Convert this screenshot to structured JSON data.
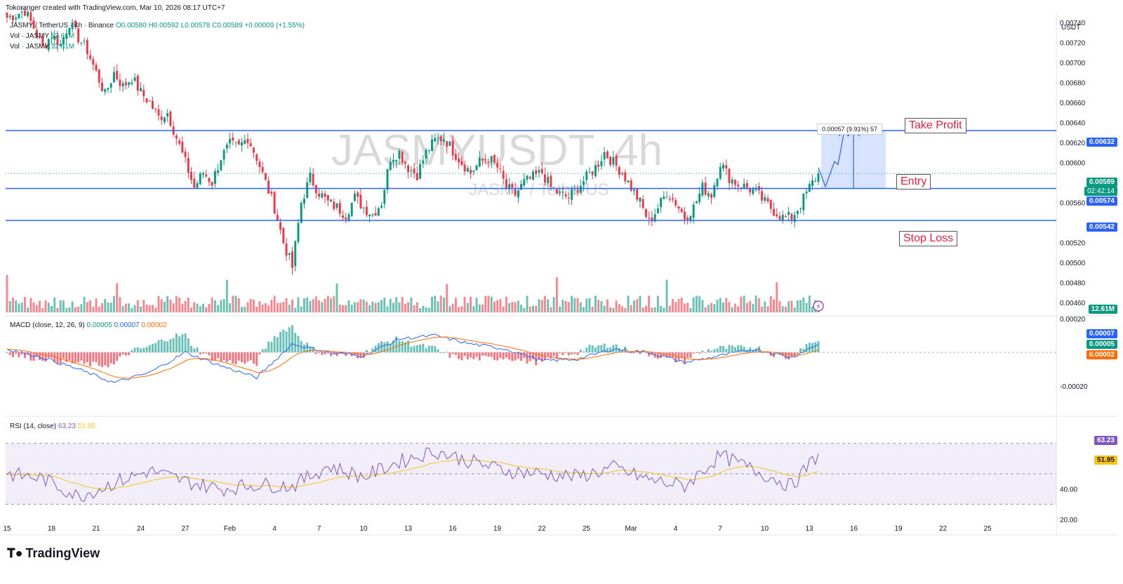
{
  "credit": "Tokoranger created with TradingView.com, Mar 10, 2026 08:17 UTC+7",
  "legend": {
    "symbol_line": "JASMY / TetherUS · 4h · Binance",
    "ohlc": "O0.00580 H0.00592 L0.00578 C0.00589 +0.00009 (+1.55%)",
    "vol1_label": "Vol · JASMY",
    "vol1_value": "12.61M",
    "vol2_label": "Vol · JASMY",
    "vol2_value": "12.61M"
  },
  "watermark": {
    "main": "JASMYUSDT, 4h",
    "sub": "JASMY / TetherUS"
  },
  "price_axis": {
    "unit": "USDT",
    "ticks": [
      "0.00740",
      "0.00720",
      "0.00700",
      "0.00680",
      "0.00660",
      "0.00640",
      "0.00620",
      "0.00600",
      "0.00560",
      "0.00520",
      "0.00500",
      "0.00480",
      "0.00460"
    ]
  },
  "badges": {
    "take_profit": "0.00632",
    "current_price": "0.00589",
    "countdown": "02:42:14",
    "entry": "0.00574",
    "stop_loss": "0.00542",
    "volume": "12.61M",
    "macd_hist": "0.00007",
    "macd_line": "0.00005",
    "macd_signal": "0.00002",
    "rsi": "63.23",
    "rsi_ma": "51.95"
  },
  "annotations": {
    "take_profit": "Take Profit",
    "entry": "Entry",
    "stop_loss": "Stop Loss",
    "measure": "0.00057 (9.91%) 57"
  },
  "macd": {
    "legend_label": "MACD (close, 12, 26, 9)",
    "values": [
      "0.00005",
      "0.00007",
      "0.00002"
    ],
    "ticks": [
      "0.00020",
      "-0.00020"
    ]
  },
  "rsi": {
    "legend_label": "RSI (14, close)",
    "values": [
      "63.23",
      "51.95"
    ],
    "ticks": [
      "40.00",
      "20.00"
    ]
  },
  "time_axis": [
    "15",
    "18",
    "21",
    "24",
    "27",
    "Feb",
    "4",
    "7",
    "10",
    "13",
    "16",
    "19",
    "22",
    "25",
    "Mar",
    "4",
    "7",
    "10",
    "13",
    "16",
    "19",
    "22",
    "25"
  ],
  "logo": "TradingView",
  "colors": {
    "up": "#089981",
    "down": "#f23645",
    "level": "#2962ff",
    "macd": "#2962ff",
    "signal": "#ff6d00",
    "rsi": "#7e57c2",
    "rsi_ma": "#f7c31a",
    "tp_badge": "#2962ff",
    "price_badge": "#089981",
    "signal_badge": "#ff6d00",
    "rsi_ma_badge": "#f7c31a"
  },
  "chart_data": {
    "type": "candlestick",
    "timeframe": "4h",
    "price_ylim": [
      0.0045,
      0.0075
    ],
    "levels": {
      "take_profit": 0.00632,
      "entry": 0.00574,
      "stop_loss": 0.00542
    },
    "close_path": [
      [
        0,
        0.00745
      ],
      [
        3,
        0.00748
      ],
      [
        6,
        0.00752
      ],
      [
        9,
        0.00735
      ],
      [
        12,
        0.00715
      ],
      [
        15,
        0.00728
      ],
      [
        18,
        0.00718
      ],
      [
        21,
        0.0074
      ],
      [
        24,
        0.00725
      ],
      [
        27,
        0.00712
      ],
      [
        30,
        0.0069
      ],
      [
        33,
        0.00668
      ],
      [
        36,
        0.0069
      ],
      [
        39,
        0.00676
      ],
      [
        42,
        0.00685
      ],
      [
        45,
        0.0067
      ],
      [
        48,
        0.0066
      ],
      [
        51,
        0.00645
      ],
      [
        54,
        0.0065
      ],
      [
        57,
        0.00625
      ],
      [
        60,
        0.006
      ],
      [
        63,
        0.00575
      ],
      [
        66,
        0.0059
      ],
      [
        69,
        0.0058
      ],
      [
        72,
        0.00605
      ],
      [
        75,
        0.00618
      ],
      [
        78,
        0.00615
      ],
      [
        81,
        0.00625
      ],
      [
        84,
        0.00605
      ],
      [
        87,
        0.0058
      ],
      [
        90,
        0.00555
      ],
      [
        93,
        0.0052
      ],
      [
        96,
        0.00495
      ],
      [
        99,
        0.0056
      ],
      [
        102,
        0.00585
      ],
      [
        105,
        0.0057
      ],
      [
        108,
        0.0056
      ],
      [
        111,
        0.00555
      ],
      [
        114,
        0.00548
      ],
      [
        117,
        0.00565
      ],
      [
        120,
        0.00555
      ],
      [
        123,
        0.00548
      ],
      [
        126,
        0.0056
      ],
      [
        129,
        0.00605
      ],
      [
        132,
        0.0061
      ],
      [
        135,
        0.00595
      ],
      [
        138,
        0.00588
      ],
      [
        141,
        0.0061
      ],
      [
        144,
        0.00622
      ],
      [
        147,
        0.00625
      ],
      [
        150,
        0.00612
      ],
      [
        153,
        0.006
      ],
      [
        156,
        0.0059
      ],
      [
        159,
        0.006
      ],
      [
        162,
        0.00605
      ],
      [
        165,
        0.00595
      ],
      [
        168,
        0.00575
      ],
      [
        171,
        0.00568
      ],
      [
        174,
        0.0058
      ],
      [
        177,
        0.00585
      ],
      [
        180,
        0.0059
      ],
      [
        183,
        0.00575
      ],
      [
        186,
        0.00568
      ],
      [
        189,
        0.00565
      ],
      [
        192,
        0.00575
      ],
      [
        195,
        0.00585
      ],
      [
        198,
        0.00595
      ],
      [
        201,
        0.0061
      ],
      [
        204,
        0.006
      ],
      [
        207,
        0.0059
      ],
      [
        210,
        0.00575
      ],
      [
        213,
        0.0056
      ],
      [
        216,
        0.0054
      ],
      [
        219,
        0.00555
      ],
      [
        222,
        0.0057
      ],
      [
        225,
        0.0056
      ],
      [
        228,
        0.00545
      ],
      [
        231,
        0.00555
      ],
      [
        234,
        0.00575
      ],
      [
        237,
        0.00568
      ],
      [
        240,
        0.006
      ],
      [
        243,
        0.00585
      ],
      [
        246,
        0.00578
      ],
      [
        249,
        0.00575
      ],
      [
        252,
        0.0057
      ],
      [
        255,
        0.0056
      ],
      [
        258,
        0.00552
      ],
      [
        261,
        0.00545
      ],
      [
        264,
        0.00545
      ],
      [
        267,
        0.00558
      ],
      [
        270,
        0.00575
      ],
      [
        273,
        0.00589
      ]
    ],
    "macd_path": [
      [
        0,
        2e-05
      ],
      [
        12,
        -3e-05
      ],
      [
        24,
        -0.0001
      ],
      [
        36,
        -0.00018
      ],
      [
        48,
        -0.00012
      ],
      [
        60,
        0.0
      ],
      [
        72,
        -8e-05
      ],
      [
        84,
        -0.00015
      ],
      [
        96,
        5e-05
      ],
      [
        108,
        0.0
      ],
      [
        120,
        -2e-05
      ],
      [
        132,
        8e-05
      ],
      [
        144,
        0.0001
      ],
      [
        156,
        5e-05
      ],
      [
        168,
        2e-05
      ],
      [
        180,
        -5e-05
      ],
      [
        192,
        -4e-05
      ],
      [
        204,
        2e-05
      ],
      [
        216,
        0.0
      ],
      [
        228,
        -6e-05
      ],
      [
        240,
        -2e-05
      ],
      [
        252,
        2e-05
      ],
      [
        264,
        -3e-05
      ],
      [
        273,
        5e-05
      ]
    ],
    "rsi_path": [
      [
        0,
        50
      ],
      [
        12,
        47
      ],
      [
        24,
        35
      ],
      [
        36,
        44
      ],
      [
        48,
        52
      ],
      [
        60,
        45
      ],
      [
        72,
        40
      ],
      [
        84,
        43
      ],
      [
        96,
        42
      ],
      [
        108,
        55
      ],
      [
        120,
        48
      ],
      [
        132,
        58
      ],
      [
        144,
        65
      ],
      [
        156,
        58
      ],
      [
        168,
        52
      ],
      [
        180,
        50
      ],
      [
        192,
        48
      ],
      [
        204,
        54
      ],
      [
        216,
        46
      ],
      [
        228,
        42
      ],
      [
        240,
        62
      ],
      [
        252,
        52
      ],
      [
        264,
        42
      ],
      [
        273,
        63
      ]
    ],
    "rsi_lines": [
      30,
      50,
      70
    ]
  }
}
